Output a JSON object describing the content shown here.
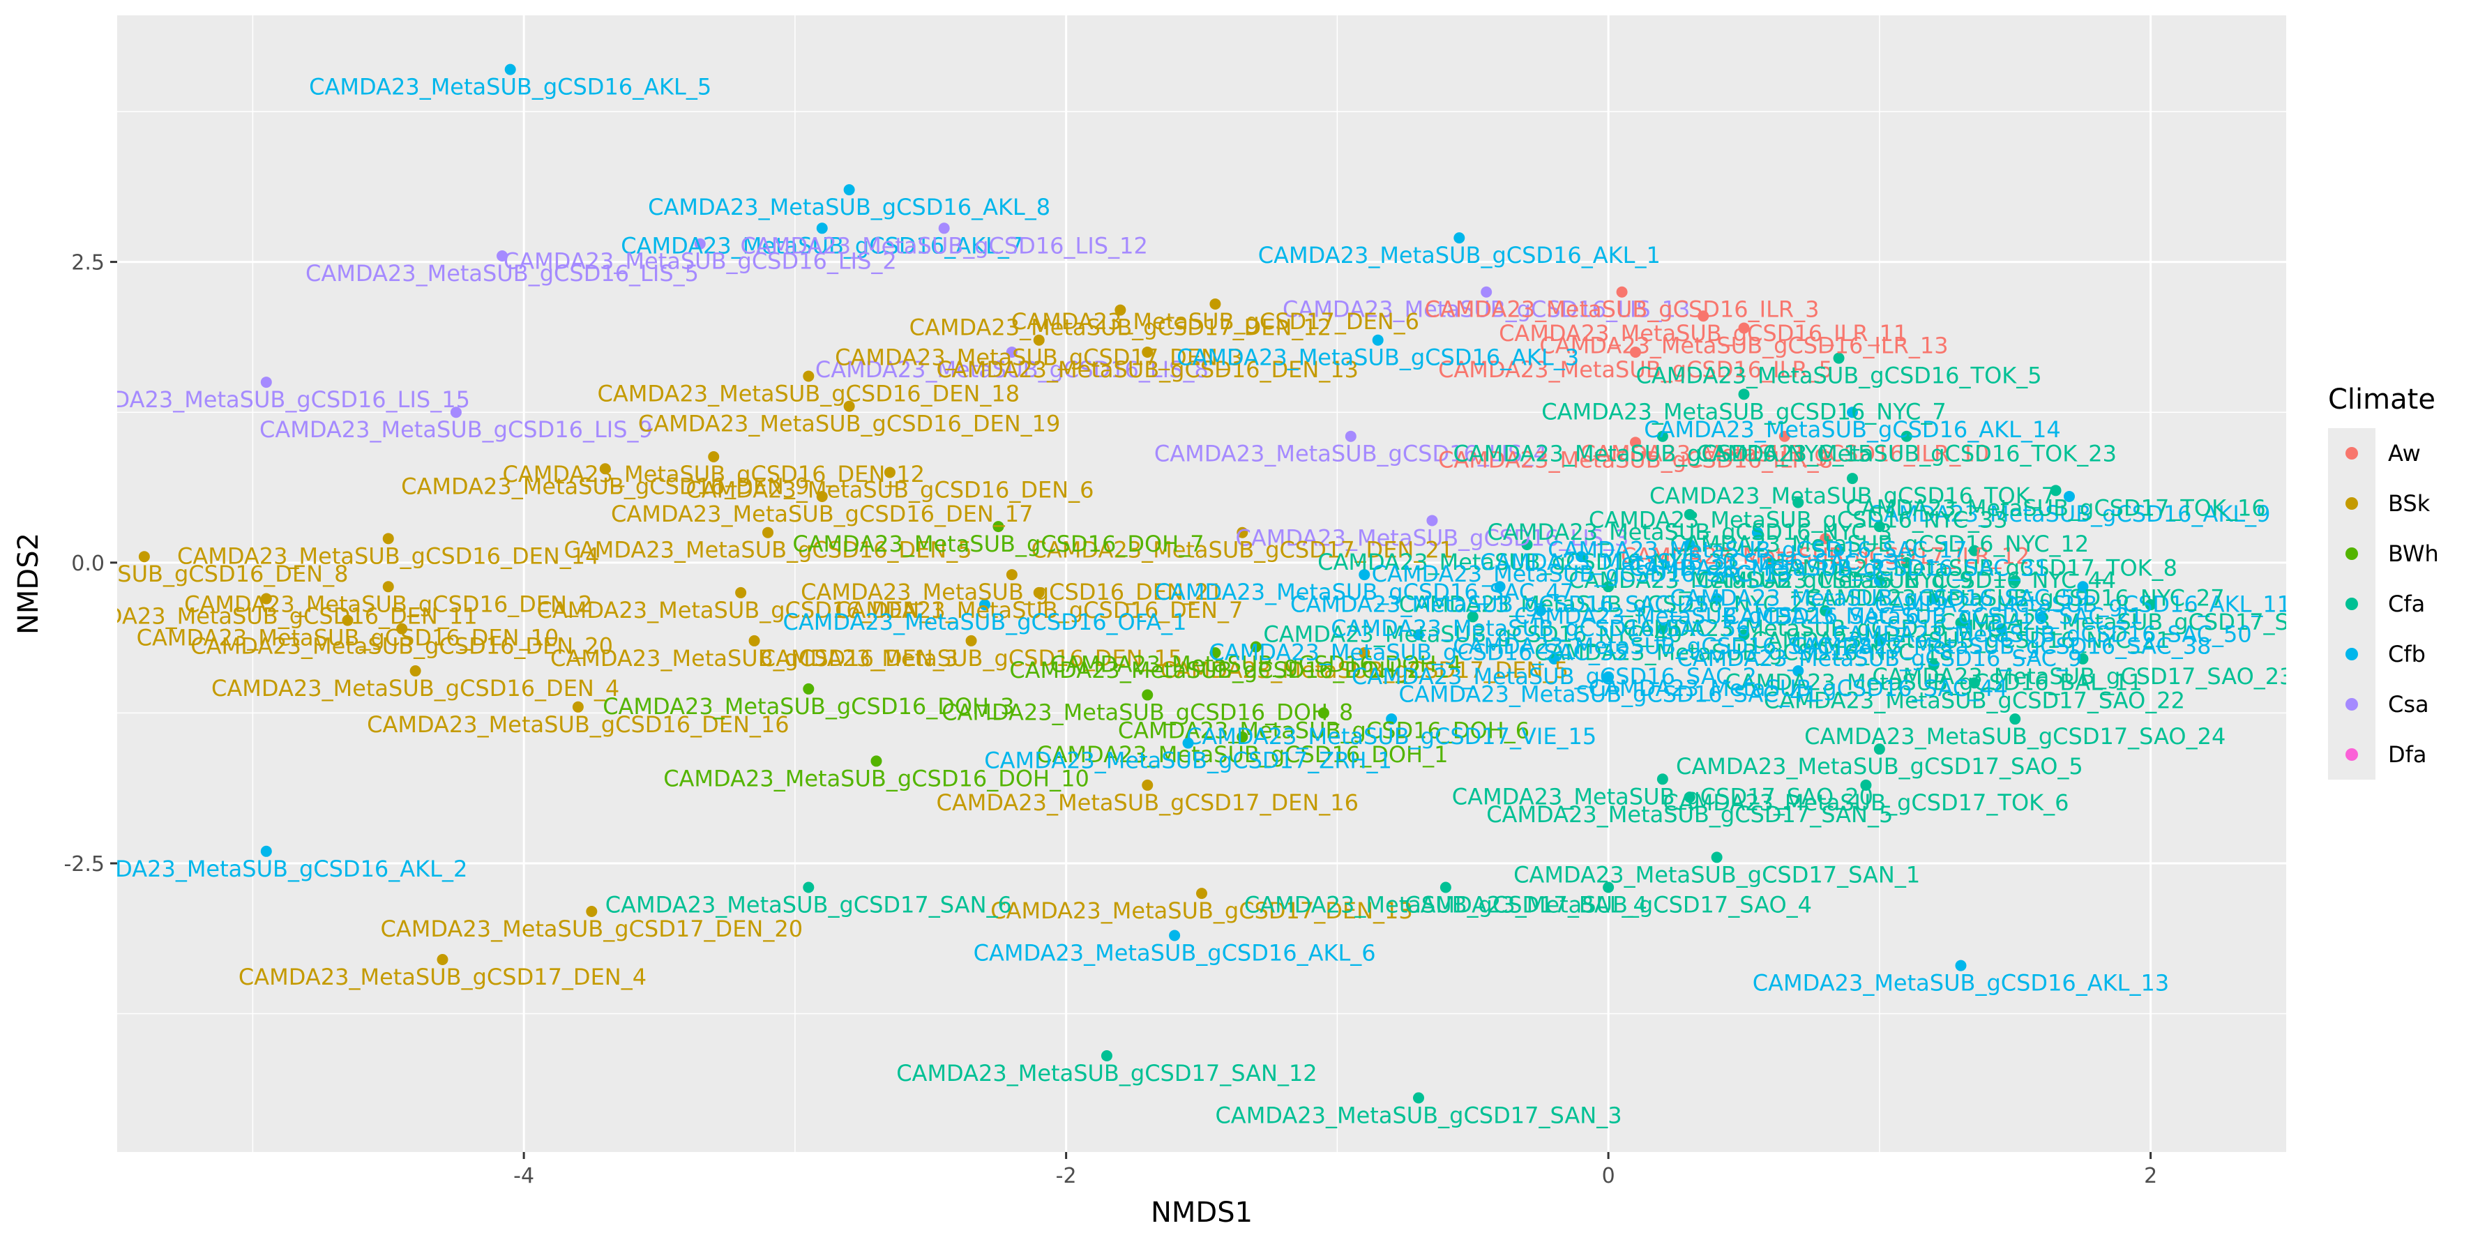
{
  "chart_data": {
    "type": "scatter",
    "title": "",
    "xlabel": "NMDS1",
    "ylabel": "NMDS2",
    "xlim": [
      -5.5,
      2.5
    ],
    "ylim": [
      -4.9,
      4.55
    ],
    "x_ticks": [
      -4,
      -2,
      0,
      2
    ],
    "x_tick_labels": [
      "-4",
      "-2",
      "0",
      "2"
    ],
    "y_ticks": [
      -2.5,
      0.0,
      2.5
    ],
    "y_tick_labels": [
      "-2.5",
      "0.0",
      "2.5"
    ],
    "grid": true,
    "legend": {
      "title": "Climate",
      "position": "right",
      "entries": [
        {
          "name": "Aw",
          "color": "#F8766D"
        },
        {
          "name": "BSk",
          "color": "#C49A00"
        },
        {
          "name": "BWh",
          "color": "#53B400"
        },
        {
          "name": "Cfa",
          "color": "#00C094"
        },
        {
          "name": "Cfb",
          "color": "#00B6EB"
        },
        {
          "name": "Csa",
          "color": "#A58AFF"
        },
        {
          "name": "Dfa",
          "color": "#FB61D7"
        }
      ]
    },
    "points": [
      {
        "label": "CAMDA23_MetaSUB_gCSD16_AKL_5",
        "x": -4.05,
        "y": 4.1,
        "climate": "Cfb"
      },
      {
        "label": "CAMDA23_MetaSUB_gCSD16_AKL_8",
        "x": -2.8,
        "y": 3.1,
        "climate": "Cfb"
      },
      {
        "label": "CAMDA23_MetaSUB_gCSD16_AKL_1",
        "x": -0.55,
        "y": 2.7,
        "climate": "Cfb"
      },
      {
        "label": "CAMDA23_MetaSUB_gCSD16_AKL_7",
        "x": -2.9,
        "y": 2.78,
        "climate": "Cfb"
      },
      {
        "label": "CAMDA23_MetaSUB_gCSD16_LIS_12",
        "x": -2.45,
        "y": 2.78,
        "climate": "Csa"
      },
      {
        "label": "CAMDA23_MetaSUB_gCSD16_LIS_2",
        "x": -3.35,
        "y": 2.65,
        "climate": "Csa"
      },
      {
        "label": "CAMDA23_MetaSUB_gCSD16_LIS_5",
        "x": -4.08,
        "y": 2.55,
        "climate": "Csa"
      },
      {
        "label": "CAMDA23_MetaSUB_gCSD16_LIS_15",
        "x": -4.95,
        "y": 1.5,
        "climate": "Csa"
      },
      {
        "label": "CAMDA23_MetaSUB_gCSD16_LIS_9",
        "x": -4.25,
        "y": 1.25,
        "climate": "Csa"
      },
      {
        "label": "CAMDA23_MetaSUB_gCSD16_LIS_8",
        "x": -2.2,
        "y": 1.75,
        "climate": "Csa"
      },
      {
        "label": "CAMDA23_MetaSUB_gCSD16_LIS_4",
        "x": -0.95,
        "y": 1.05,
        "climate": "Csa"
      },
      {
        "label": "CAMDA23_MetaSUB_gCSD16_LIS_13",
        "x": -0.45,
        "y": 2.25,
        "climate": "Csa"
      },
      {
        "label": "CAMDA23_MetaSUB_gCSD16_LIS_3",
        "x": -0.65,
        "y": 0.35,
        "climate": "Csa"
      },
      {
        "label": "CAMDA23_MetaSUB_gCSD16_DEN_18",
        "x": -2.95,
        "y": 1.55,
        "climate": "BSk"
      },
      {
        "label": "CAMDA23_MetaSUB_gCSD16_DEN_19",
        "x": -2.8,
        "y": 1.3,
        "climate": "BSk"
      },
      {
        "label": "CAMDA23_MetaSUB_gCSD16_DEN_6",
        "x": -2.65,
        "y": 0.75,
        "climate": "BSk"
      },
      {
        "label": "CAMDA23_MetaSUB_gCSD16_DEN_12",
        "x": -3.3,
        "y": 0.88,
        "climate": "BSk"
      },
      {
        "label": "CAMDA23_MetaSUB_gCSD16_DEN_17",
        "x": -2.9,
        "y": 0.55,
        "climate": "BSk"
      },
      {
        "label": "CAMDA23_MetaSUB_gCSD16_DEN_9",
        "x": -3.7,
        "y": 0.78,
        "climate": "BSk"
      },
      {
        "label": "CAMDA23_MetaSUB_gCSD16_DEN_8",
        "x": -5.4,
        "y": 0.05,
        "climate": "BSk"
      },
      {
        "label": "CAMDA23_MetaSUB_gCSD16_DEN_14",
        "x": -4.5,
        "y": 0.2,
        "climate": "BSk"
      },
      {
        "label": "CAMDA23_MetaSUB_gCSD16_DEN_21",
        "x": -2.2,
        "y": -0.1,
        "climate": "BSk"
      },
      {
        "label": "CAMDA23_MetaSUB_gCSD16_DEN_1",
        "x": -3.2,
        "y": -0.25,
        "climate": "BSk"
      },
      {
        "label": "CAMDA23_MetaSUB_gCSD16_DEN_7",
        "x": -2.1,
        "y": -0.25,
        "climate": "BSk"
      },
      {
        "label": "CAMDA23_MetaSUB_gCSD16_DEN_2",
        "x": -4.5,
        "y": -0.2,
        "climate": "BSk"
      },
      {
        "label": "CAMDA23_MetaSUB_gCSD16_DEN_5",
        "x": -3.1,
        "y": 0.25,
        "climate": "BSk"
      },
      {
        "label": "CAMDA23_MetaSUB_gCSD16_DEN_11",
        "x": -4.95,
        "y": -0.3,
        "climate": "BSk"
      },
      {
        "label": "CAMDA23_MetaSUB_gCSD16_DEN_10",
        "x": -4.65,
        "y": -0.48,
        "climate": "BSk"
      },
      {
        "label": "CAMDA23_MetaSUB_gCSD16_DEN_20",
        "x": -4.45,
        "y": -0.55,
        "climate": "BSk"
      },
      {
        "label": "CAMDA23_MetaSUB_gCSD16_DEN_3",
        "x": -3.15,
        "y": -0.65,
        "climate": "BSk"
      },
      {
        "label": "CAMDA23_MetaSUB_gCSD16_DEN_15",
        "x": -2.35,
        "y": -0.65,
        "climate": "BSk"
      },
      {
        "label": "CAMDA23_MetaSUB_gCSD16_DEN_4",
        "x": -4.4,
        "y": -0.9,
        "climate": "BSk"
      },
      {
        "label": "CAMDA23_MetaSUB_gCSD16_DEN_16",
        "x": -3.8,
        "y": -1.2,
        "climate": "BSk"
      },
      {
        "label": "CAMDA23_MetaSUB_gCSD16_DEN_13",
        "x": -1.7,
        "y": 1.75,
        "climate": "BSk"
      },
      {
        "label": "CAMDA23_MetaSUB_gCSD17_DEN_3",
        "x": -2.1,
        "y": 1.85,
        "climate": "BSk"
      },
      {
        "label": "CAMDA23_MetaSUB_gCSD17_DEN_6",
        "x": -1.45,
        "y": 2.15,
        "climate": "BSk"
      },
      {
        "label": "CAMDA23_MetaSUB_gCSD17_DEN_12",
        "x": -1.8,
        "y": 2.1,
        "climate": "BSk"
      },
      {
        "label": "CAMDA23_MetaSUB_gCSD17_DEN_21",
        "x": -1.35,
        "y": 0.25,
        "climate": "BSk"
      },
      {
        "label": "CAMDA23_MetaSUB_gCSD17_DEN_20",
        "x": -3.75,
        "y": -2.9,
        "climate": "BSk"
      },
      {
        "label": "CAMDA23_MetaSUB_gCSD17_DEN_4",
        "x": -4.3,
        "y": -3.3,
        "climate": "BSk"
      },
      {
        "label": "CAMDA23_MetaSUB_gCSD17_DEN_13",
        "x": -1.5,
        "y": -2.75,
        "climate": "BSk"
      },
      {
        "label": "CAMDA23_MetaSUB_gCSD17_DEN_16",
        "x": -1.7,
        "y": -1.85,
        "climate": "BSk"
      },
      {
        "label": "CAMDA23_MetaSUB_gCSD17_DEN_5",
        "x": -0.9,
        "y": -0.75,
        "climate": "BSk"
      },
      {
        "label": "CAMDA23_MetaSUB_gCSD16_DOH_10",
        "x": -2.7,
        "y": -1.65,
        "climate": "BWh"
      },
      {
        "label": "CAMDA23_MetaSUB_gCSD16_DOH_3",
        "x": -2.95,
        "y": -1.05,
        "climate": "BWh"
      },
      {
        "label": "CAMDA23_MetaSUB_gCSD16_DOH_6",
        "x": -1.05,
        "y": -1.25,
        "climate": "BWh"
      },
      {
        "label": "CAMDA23_MetaSUB_gCSD16_DOH_8",
        "x": -1.7,
        "y": -1.1,
        "climate": "BWh"
      },
      {
        "label": "CAMDA23_MetaSUB_gCSD16_DOH_7",
        "x": -2.25,
        "y": 0.3,
        "climate": "BWh"
      },
      {
        "label": "CAMDA23_MetaSUB_gCSD16_DOH_2",
        "x": -1.45,
        "y": -0.75,
        "climate": "BWh"
      },
      {
        "label": "CAMDA23_MetaSUB_gCSD16_DOH_4",
        "x": -1.3,
        "y": -0.7,
        "climate": "BWh"
      },
      {
        "label": "CAMDA23_MetaSUB_gCSD16_DOH_1",
        "x": -1.35,
        "y": -1.45,
        "climate": "BWh"
      },
      {
        "label": "CAMDA23_MetaSUB_gCSD16_ILR_11",
        "x": 0.35,
        "y": 2.05,
        "climate": "Aw"
      },
      {
        "label": "CAMDA23_MetaSUB_gCSD16_ILR_13",
        "x": 0.5,
        "y": 1.95,
        "climate": "Aw"
      },
      {
        "label": "CAMDA23_MetaSUB_gCSD16_ILR_5",
        "x": 0.1,
        "y": 1.75,
        "climate": "Aw"
      },
      {
        "label": "CAMDA23_MetaSUB_gCSD16_ILR_3",
        "x": 0.05,
        "y": 2.25,
        "climate": "Aw"
      },
      {
        "label": "CAMDA23_MetaSUB_gCSD16_ILR_10",
        "x": 0.65,
        "y": 1.05,
        "climate": "Aw"
      },
      {
        "label": "CAMDA23_MetaSUB_gCSD16_ILR_8",
        "x": 0.1,
        "y": 1.0,
        "climate": "Aw"
      },
      {
        "label": "CAMDA23_MetaSUB_gCSD17_ILR_12",
        "x": 0.8,
        "y": 0.2,
        "climate": "Aw"
      },
      {
        "label": "CAMDA23_MetaSUB_gCSD16_AKL_3",
        "x": -0.85,
        "y": 1.85,
        "climate": "Cfb"
      },
      {
        "label": "CAMDA23_MetaSUB_gCSD16_AKL_14",
        "x": 0.9,
        "y": 1.25,
        "climate": "Cfb"
      },
      {
        "label": "CAMDA23_MetaSUB_gCSD16_AKL_9",
        "x": 1.7,
        "y": 0.55,
        "climate": "Cfb"
      },
      {
        "label": "CAMDA23_MetaSUB_gCSD16_AKL_11",
        "x": 1.75,
        "y": -0.2,
        "climate": "Cfb"
      },
      {
        "label": "CAMDA23_MetaSUB_gCSD16_AKL_2",
        "x": -4.95,
        "y": -2.4,
        "climate": "Cfb"
      },
      {
        "label": "CAMDA23_MetaSUB_gCSD16_AKL_6",
        "x": -1.6,
        "y": -3.1,
        "climate": "Cfb"
      },
      {
        "label": "CAMDA23_MetaSUB_gCSD16_AKL_13",
        "x": 1.3,
        "y": -3.35,
        "climate": "Cfb"
      },
      {
        "label": "CAMDA23_MetaSUB_gCSD17_VIE_15",
        "x": -0.8,
        "y": -1.3,
        "climate": "Cfb"
      },
      {
        "label": "CAMDA23_MetaSUB_gCSD17_ZRH_1",
        "x": -1.55,
        "y": -1.5,
        "climate": "Cfb"
      },
      {
        "label": "CAMDA23_MetaSUB_gCSD16_OFA_1",
        "x": -2.3,
        "y": -0.35,
        "climate": "Cfb"
      },
      {
        "label": "CAMDA23_MetaSUB_gCSD17_SAN_1",
        "x": 0.4,
        "y": -2.45,
        "climate": "Cfa"
      },
      {
        "label": "CAMDA23_MetaSUB_gCSD17_SAN_5",
        "x": 0.3,
        "y": -1.95,
        "climate": "Cfa"
      },
      {
        "label": "CAMDA23_MetaSUB_gCSD17_SAN_6",
        "x": -2.95,
        "y": -2.7,
        "climate": "Cfa"
      },
      {
        "label": "CAMDA23_MetaSUB_gCSD17_SAN_12",
        "x": -1.85,
        "y": -4.1,
        "climate": "Cfa"
      },
      {
        "label": "CAMDA23_MetaSUB_gCSD17_SAN_3",
        "x": -0.7,
        "y": -4.45,
        "climate": "Cfa"
      },
      {
        "label": "CAMDA23_MetaSUB_gCSD17_SAO_4",
        "x": 0.0,
        "y": -2.7,
        "climate": "Cfa"
      },
      {
        "label": "CAMDA23_MetaSUB_gCSD17_BAL_4",
        "x": -0.6,
        "y": -2.7,
        "climate": "Cfa"
      },
      {
        "label": "CAMDA23_MetaSUB_gCSD17_SAO_5",
        "x": 1.0,
        "y": -1.55,
        "climate": "Cfa"
      },
      {
        "label": "CAMDA23_MetaSUB_gCSD17_SAO_20",
        "x": 0.2,
        "y": -1.8,
        "climate": "Cfa"
      },
      {
        "label": "CAMDA23_MetaSUB_gCSD17_SAO_22",
        "x": 1.35,
        "y": -1.0,
        "climate": "Cfa"
      },
      {
        "label": "CAMDA23_MetaSUB_gCSD17_SAO_23",
        "x": 1.75,
        "y": -0.8,
        "climate": "Cfa"
      },
      {
        "label": "CAMDA23_MetaSUB_gCSD17_SAO_24",
        "x": 1.5,
        "y": -1.3,
        "climate": "Cfa"
      },
      {
        "label": "CAMDA23_MetaSUB_gCSD17_SAO_19",
        "x": 2.0,
        "y": -0.35,
        "climate": "Cfa"
      },
      {
        "label": "CAMDA23_MetaSUB_gCSD17_TOK_6",
        "x": 0.95,
        "y": -1.85,
        "climate": "Cfa"
      },
      {
        "label": "CAMDA23_MetaSUB_gCSD17_TOK_16",
        "x": 1.65,
        "y": 0.6,
        "climate": "Cfa"
      },
      {
        "label": "CAMDA23_MetaSUB_gCSD17_TOK_8",
        "x": 1.35,
        "y": 0.1,
        "climate": "Cfa"
      },
      {
        "label": "CAMDA23_MetaSUB_gCSD16_TOK_5",
        "x": 0.85,
        "y": 1.7,
        "climate": "Cfa"
      },
      {
        "label": "CAMDA23_MetaSUB_gCSD16_TOK_23",
        "x": 1.1,
        "y": 1.05,
        "climate": "Cfa"
      },
      {
        "label": "CAMDA23_MetaSUB_gCSD16_TOK_7",
        "x": 0.9,
        "y": 0.7,
        "climate": "Cfa"
      },
      {
        "label": "CAMDA23_MetaSUB_gCSD16_NYC_7",
        "x": 0.5,
        "y": 1.4,
        "climate": "Cfa"
      },
      {
        "label": "CAMDA23_MetaSUB_gCSD16_NYC_15",
        "x": 0.2,
        "y": 1.05,
        "climate": "Cfa"
      },
      {
        "label": "CAMDA23_MetaSUB_gCSD16_BAL_11",
        "x": 1.2,
        "y": -0.85,
        "climate": "Cfa"
      },
      {
        "label": "CAMDA23_MetaSUB_gCSD16_NYC_1",
        "x": 0.8,
        "y": -0.4,
        "climate": "Cfa"
      },
      {
        "label": "CAMDA23_MetaSUB_gCSD16_NYC_3",
        "x": 0.3,
        "y": 0.4,
        "climate": "Cfa"
      },
      {
        "label": "CAMDA23_MetaSUB_gCSD16_NYC_9",
        "x": 0.6,
        "y": 0.0,
        "climate": "Cfa"
      },
      {
        "label": "CAMDA23_MetaSUB_gCSD16_NYC_12",
        "x": 1.0,
        "y": 0.3,
        "climate": "Cfa"
      },
      {
        "label": "CAMDA23_MetaSUB_gCSD16_NYC_18",
        "x": 0.5,
        "y": -0.6,
        "climate": "Cfa"
      },
      {
        "label": "CAMDA23_MetaSUB_gCSD16_NYC_21",
        "x": 1.3,
        "y": -0.5,
        "climate": "Cfa"
      },
      {
        "label": "CAMDA23_MetaSUB_gCSD16_NYC_25",
        "x": 0.0,
        "y": -0.2,
        "climate": "Cfa"
      },
      {
        "label": "CAMDA23_MetaSUB_gCSD16_NYC_27",
        "x": 1.5,
        "y": -0.15,
        "climate": "Cfa"
      },
      {
        "label": "CAMDA23_MetaSUB_gCSD16_NYC_30",
        "x": -0.3,
        "y": 0.15,
        "climate": "Cfa"
      },
      {
        "label": "CAMDA23_MetaSUB_gCSD16_NYC_33",
        "x": 0.7,
        "y": 0.5,
        "climate": "Cfa"
      },
      {
        "label": "CAMDA23_MetaSUB_gCSD16_NYC_40",
        "x": -0.5,
        "y": -0.45,
        "climate": "Cfa"
      },
      {
        "label": "CAMDA23_MetaSUB_gCSD16_NYC_44",
        "x": 1.1,
        "y": 0.0,
        "climate": "Cfa"
      },
      {
        "label": "CAMDA23_MetaSUB_gCSD16_SAC_2",
        "x": -0.2,
        "y": -0.8,
        "climate": "Cfb"
      },
      {
        "label": "CAMDA23_MetaSUB_gCSD16_SAC_6",
        "x": 0.4,
        "y": -0.3,
        "climate": "Cfb"
      },
      {
        "label": "CAMDA23_MetaSUB_gCSD16_SAC_9",
        "x": 1.0,
        "y": -0.65,
        "climate": "Cfb"
      },
      {
        "label": "CAMDA23_MetaSUB_gCSD16_SAC_13",
        "x": -0.1,
        "y": 0.05,
        "climate": "Cfb"
      },
      {
        "label": "CAMDA23_MetaSUB_gCSD16_SAC_17",
        "x": 0.55,
        "y": 0.25,
        "climate": "Cfb"
      },
      {
        "label": "CAMDA23_MetaSUB_gCSD16_SAC_21",
        "x": 1.2,
        "y": -0.3,
        "climate": "Cfb"
      },
      {
        "label": "CAMDA23_MetaSUB_gCSD16_SAC_25",
        "x": -0.4,
        "y": -0.2,
        "climate": "Cfb"
      },
      {
        "label": "CAMDA23_MetaSUB_gCSD16_SAC_28",
        "x": 0.2,
        "y": -0.55,
        "climate": "Cfb"
      },
      {
        "label": "CAMDA23_MetaSUB_gCSD16_SAC_31",
        "x": 0.85,
        "y": 0.1,
        "climate": "Cfb"
      },
      {
        "label": "CAMDA23_MetaSUB_gCSD16_SAC_35",
        "x": -0.7,
        "y": -0.6,
        "climate": "Cfb"
      },
      {
        "label": "CAMDA23_MetaSUB_gCSD16_SAC_38",
        "x": 1.45,
        "y": -0.55,
        "climate": "Cfb"
      },
      {
        "label": "CAMDA23_MetaSUB_gCSD16_SAC_41",
        "x": 0.0,
        "y": -0.95,
        "climate": "Cfb"
      },
      {
        "label": "CAMDA23_MetaSUB_gCSD16_SAC_44",
        "x": 0.7,
        "y": -0.9,
        "climate": "Cfb"
      },
      {
        "label": "CAMDA23_MetaSUB_gCSD16_SAC_47",
        "x": -0.9,
        "y": -0.1,
        "climate": "Cfb"
      },
      {
        "label": "CAMDA23_MetaSUB_gCSD16_SAC_50",
        "x": 1.6,
        "y": -0.45,
        "climate": "Cfb"
      },
      {
        "label": "CAMDA23_MetaSUB_gCSD16_SAC_53",
        "x": 0.3,
        "y": 0.15,
        "climate": "Cfb"
      },
      {
        "label": "CAMDA23_MetaSUB_gCSD16_SAC_56",
        "x": -0.25,
        "y": -0.4,
        "climate": "Cfb"
      },
      {
        "label": "CAMDA23_MetaSUB_gCSD16_SAC_59",
        "x": 1.0,
        "y": -0.15,
        "climate": "Cfb"
      }
    ]
  }
}
